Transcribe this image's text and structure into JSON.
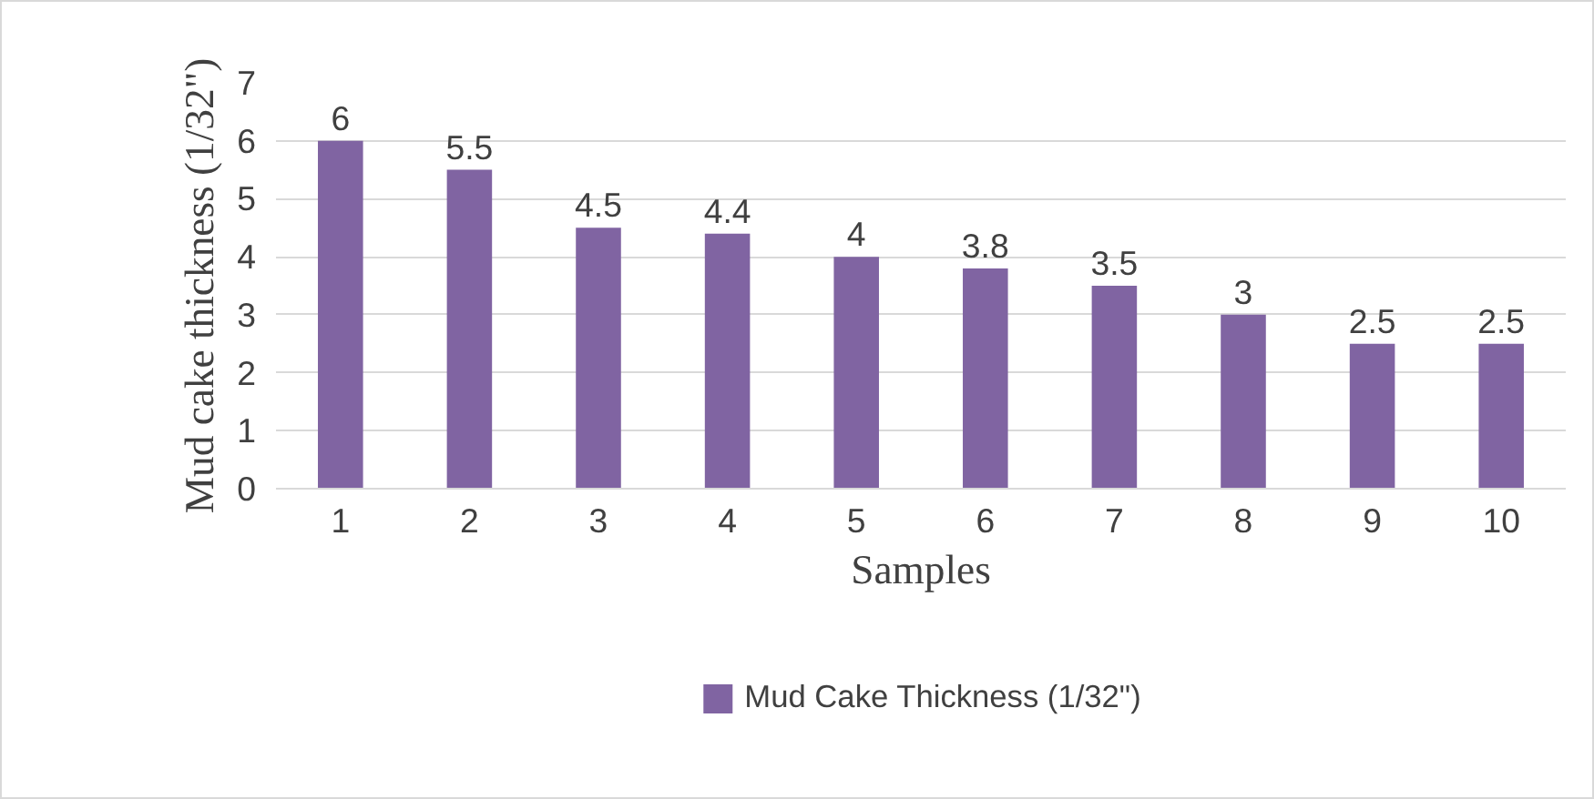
{
  "chart_data": {
    "type": "bar",
    "xlabel": "Samples",
    "ylabel": "Mud cake thickness (1/32\")",
    "categories": [
      "1",
      "2",
      "3",
      "4",
      "5",
      "6",
      "7",
      "8",
      "9",
      "10"
    ],
    "series": [
      {
        "name": "Mud Cake Thickness (1/32\")",
        "color": "#8064a2",
        "values": [
          6,
          5.5,
          4.5,
          4.4,
          4,
          3.8,
          3.5,
          3,
          2.5,
          2.5
        ]
      }
    ],
    "ylim": [
      0,
      7
    ],
    "yticks": [
      0,
      1,
      2,
      3,
      4,
      5,
      6,
      7
    ],
    "grid": "y",
    "legend": "bottom",
    "data_labels": true
  }
}
